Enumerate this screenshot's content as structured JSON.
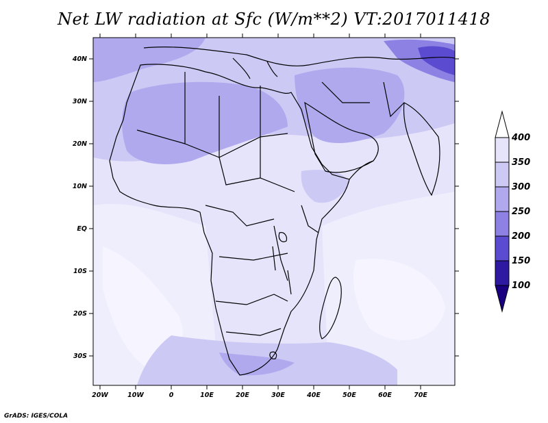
{
  "title": "Net LW radiation at Sfc (W/m**2) VT:2017011418",
  "credit": "GrADS: IGES/COLA",
  "map": {
    "lat_labels": [
      "40N",
      "30N",
      "20N",
      "10N",
      "EQ",
      "10S",
      "20S",
      "30S"
    ],
    "lon_labels": [
      "20W",
      "10W",
      "0",
      "10E",
      "20E",
      "30E",
      "40E",
      "50E",
      "60E",
      "70E"
    ],
    "lon_range": [
      -22,
      80
    ],
    "lat_range": [
      -37,
      45
    ]
  },
  "colorbar": {
    "levels": [
      "400",
      "350",
      "300",
      "250",
      "200",
      "150",
      "100"
    ],
    "colors": [
      "#ffffff",
      "#e6e4fb",
      "#cdc9f5",
      "#b0a9ee",
      "#8d82e3",
      "#5a4bd0",
      "#2d1aa0",
      "#1a0080"
    ]
  }
}
